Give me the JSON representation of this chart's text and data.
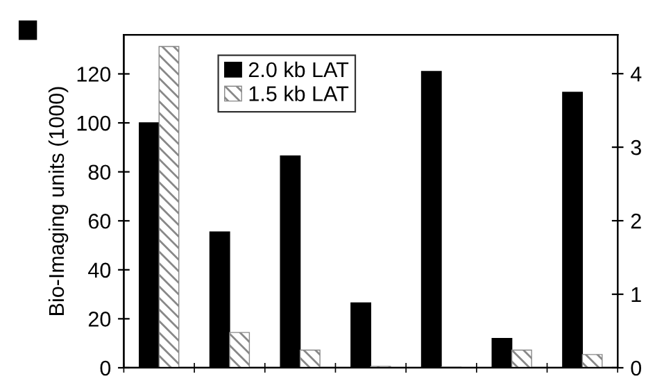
{
  "chart_data": {
    "type": "bar",
    "ylabel": "Bio-Imaging units (1000)",
    "categories": [
      null,
      null,
      null,
      null,
      null,
      null,
      null
    ],
    "series": [
      {
        "name": "2.0 kb LAT",
        "color": "#000000",
        "values": [
          100,
          55.5,
          86.5,
          26.5,
          121,
          12,
          112.5
        ]
      },
      {
        "name": "1.5 kb LAT",
        "color": "#888888",
        "axis": "y2",
        "values": [
          4.37,
          0.48,
          0.24,
          0.02,
          0.01,
          0.24,
          0.18
        ]
      }
    ],
    "ylim": [
      0,
      136
    ],
    "yticks": [
      0,
      20,
      40,
      60,
      80,
      100,
      120
    ],
    "y2lim": [
      0,
      4.53
    ],
    "y2ticks": [
      0,
      1,
      2,
      3,
      4
    ],
    "grid": false,
    "legend": "top"
  }
}
